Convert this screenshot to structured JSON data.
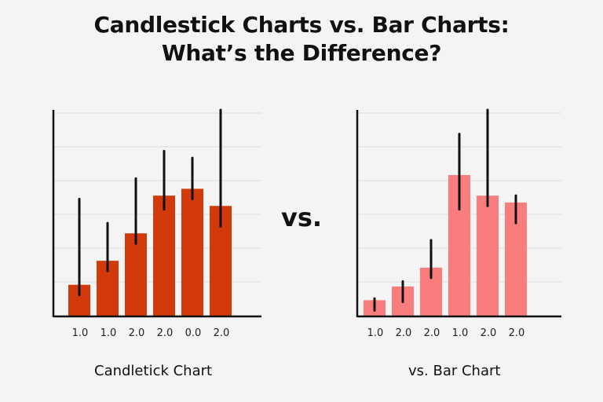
{
  "header": {
    "title_line1": "Candlestick Charts vs. Bar Charts:",
    "title_line2": "What’s the Difference?"
  },
  "vs_label": "vs.",
  "colors": {
    "left_bar": "#d2390b",
    "right_bar": "#f97d7d",
    "wick": "#111111",
    "axis": "#111111",
    "grid": "#dcdcdc"
  },
  "chart_data": [
    {
      "type": "bar",
      "caption": "Candletick Chart",
      "categories": [
        "1.0",
        "1.0",
        "2.0",
        "2.0",
        "0.0",
        "2.0"
      ],
      "values": [
        0.9,
        1.6,
        2.4,
        3.5,
        3.7,
        3.2
      ],
      "wick_low": [
        0.6,
        1.3,
        2.1,
        3.1,
        3.4,
        2.6
      ],
      "wick_high": [
        3.4,
        2.7,
        4.0,
        4.8,
        4.6,
        6.0
      ],
      "ylim": [
        0,
        6.0
      ],
      "grid": true,
      "wick_color": "#111111",
      "bar_color": "#d2390b"
    },
    {
      "type": "bar",
      "caption": "vs. Bar Chart",
      "categories": [
        "1.0",
        "2.0",
        "2.0",
        "1.0",
        "2.0",
        "2.0"
      ],
      "values": [
        0.45,
        0.85,
        1.4,
        4.1,
        3.5,
        3.3
      ],
      "wick_low": [
        0.15,
        0.4,
        1.1,
        3.1,
        3.2,
        2.7
      ],
      "wick_high": [
        0.5,
        1.0,
        2.2,
        5.3,
        6.0,
        3.5
      ],
      "ylim": [
        0,
        6.0
      ],
      "grid": true,
      "wick_color": "#111111",
      "bar_color": "#f97d7d"
    }
  ]
}
